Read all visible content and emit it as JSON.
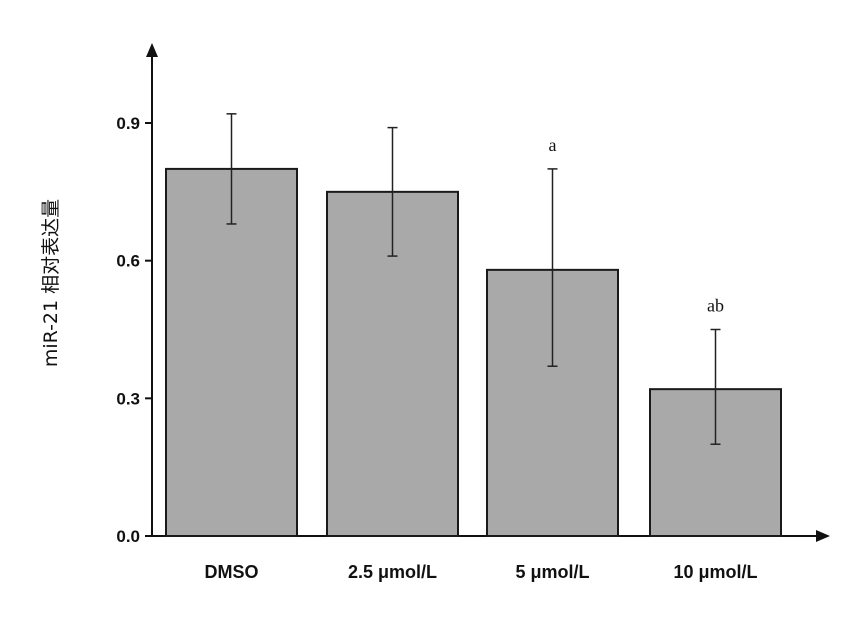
{
  "chart_data": {
    "type": "bar",
    "title": "",
    "xlabel": "",
    "ylabel": "miR-21 相对表达量",
    "ylim": [
      0,
      1.07
    ],
    "yticks": [
      0.0,
      0.3,
      0.6,
      0.9
    ],
    "ytick_labels": [
      "0.0",
      "0.3",
      "0.6",
      "0.9"
    ],
    "categories": [
      "DMSO",
      "2.5 μmol/L",
      "5 μmol/L",
      "10 μmol/L"
    ],
    "values": [
      0.8,
      0.75,
      0.58,
      0.32
    ],
    "error_upper": [
      0.92,
      0.89,
      0.8,
      0.45
    ],
    "error_lower": [
      0.68,
      0.61,
      0.37,
      0.2
    ],
    "annotations": [
      "",
      "",
      "a",
      "ab"
    ],
    "grid": false,
    "colors": {
      "bar_fill": "#a9a9a9",
      "bar_stroke": "#1a1a1a",
      "axis": "#111111"
    }
  }
}
